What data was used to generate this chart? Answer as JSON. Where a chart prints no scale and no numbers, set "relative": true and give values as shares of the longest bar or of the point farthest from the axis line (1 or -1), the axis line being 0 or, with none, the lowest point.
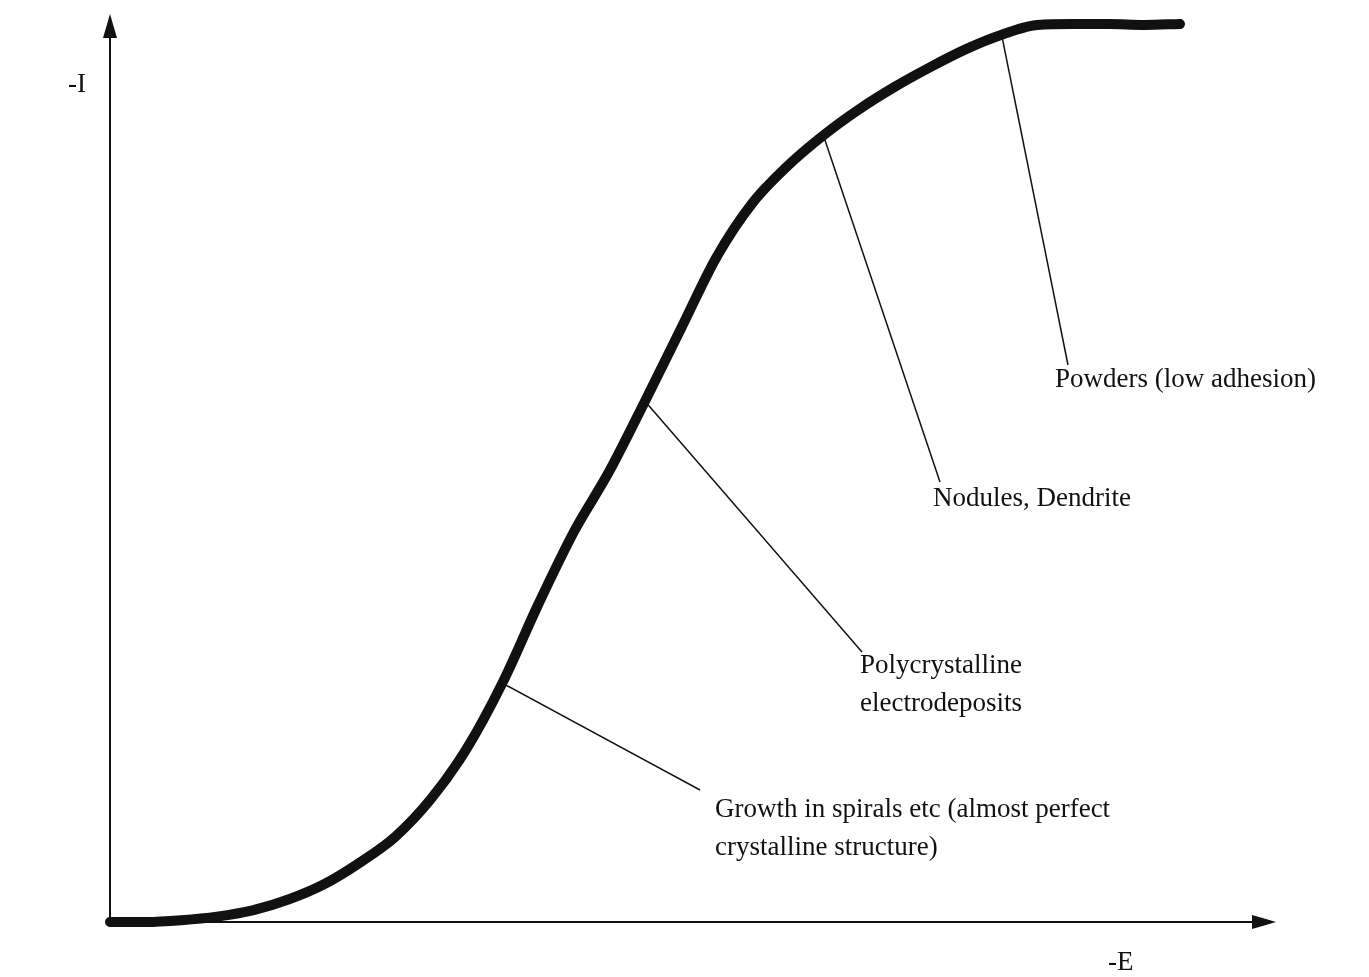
{
  "chart_data": {
    "type": "line",
    "relative": true,
    "xlabel": "-E",
    "ylabel": "-I",
    "color": "#111111",
    "categories": [
      null,
      null,
      null,
      null,
      null,
      null,
      null,
      null,
      null,
      null,
      null,
      null,
      null,
      null,
      null,
      null,
      null,
      null,
      null,
      null,
      null,
      null,
      null,
      null,
      null,
      null,
      null,
      null,
      null,
      null,
      null
    ],
    "values": [
      0,
      0,
      0.002,
      0.006,
      0.013,
      0.025,
      0.042,
      0.066,
      0.095,
      0.137,
      0.193,
      0.266,
      0.353,
      0.434,
      0.502,
      0.58,
      0.66,
      0.74,
      0.8,
      0.842,
      0.876,
      0.905,
      0.93,
      0.952,
      0.972,
      0.988,
      0.999,
      1,
      1,
      0.999,
      1
    ],
    "annotations": [
      "Powders (low adhesion)",
      "Nodules, Dendrite",
      "Polycrystalline electrodeposits",
      "Growth in spirals etc (almost perfect crystalline structure)"
    ]
  }
}
